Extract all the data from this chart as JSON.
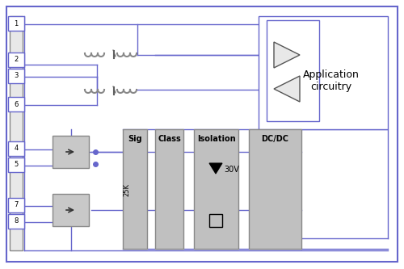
{
  "bg_color": "#f8f8f8",
  "outer_border_color": "#a0a0c0",
  "blue": "#6666cc",
  "gray": "#b0b0b0",
  "dark_gray": "#606060",
  "pin_labels": [
    "1",
    "2",
    "3",
    "6",
    "4",
    "5",
    "7",
    "8"
  ],
  "block_labels": [
    "Sig",
    "Class",
    "Isolation",
    "DC/DC"
  ],
  "title": "Application\ncircuitry",
  "resistor_label": "25K",
  "voltage_label": "30V"
}
